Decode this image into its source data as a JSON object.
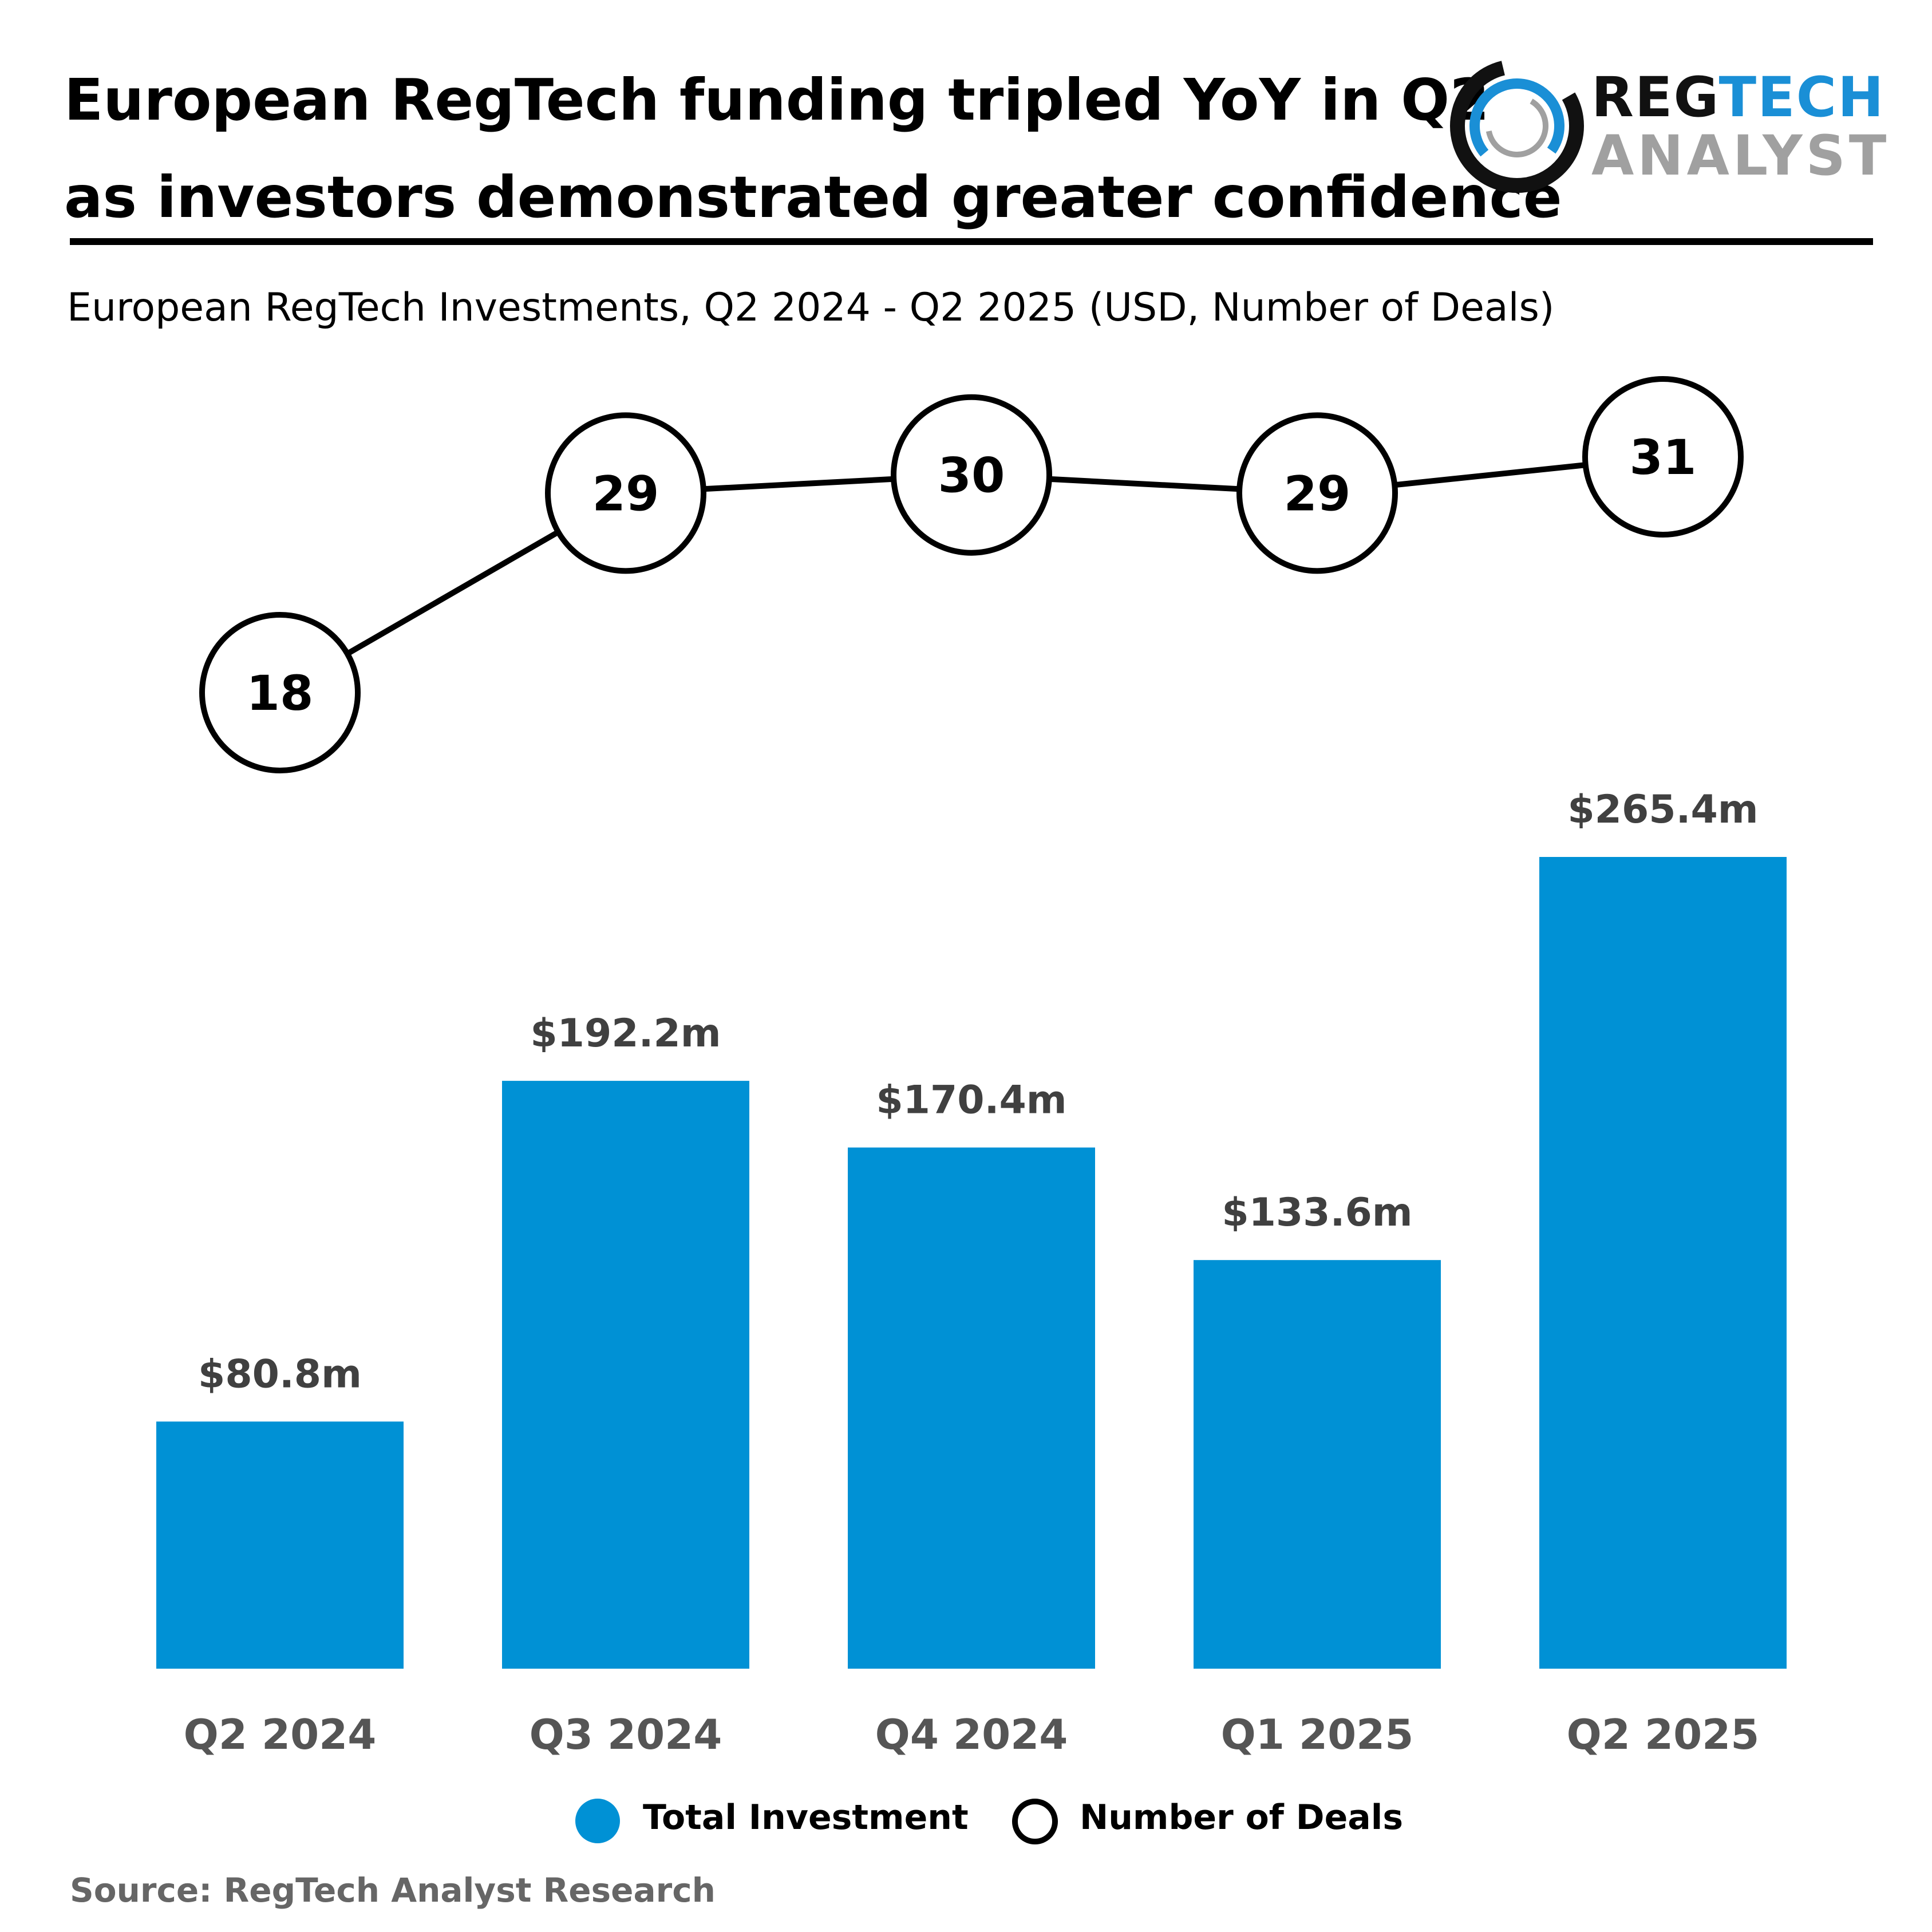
{
  "header": {
    "title_line1": "European RegTech funding tripled YoY in Q2",
    "title_line2": "as investors demonstrated greater confidence",
    "logo_top_part1": "REG",
    "logo_top_part2": "TECH",
    "logo_bottom": "ANALYST"
  },
  "subtitle": "European RegTech Investments, Q2 2024 - Q2 2025 (USD, Number of Deals)",
  "chart_data": {
    "type": "bar",
    "title": "European RegTech Investments, Q2 2024 - Q2 2025 (USD, Number of Deals)",
    "categories": [
      "Q2 2024",
      "Q3 2024",
      "Q4 2024",
      "Q1 2025",
      "Q2 2025"
    ],
    "series": [
      {
        "name": "Total Investment",
        "type": "bar",
        "unit": "USD millions",
        "values": [
          80.8,
          192.2,
          170.4,
          133.6,
          265.4
        ],
        "labels": [
          "$80.8m",
          "$192.2m",
          "$170.4m",
          "$133.6m",
          "$265.4m"
        ]
      },
      {
        "name": "Number of Deals",
        "type": "line",
        "values": [
          18,
          29,
          30,
          29,
          31
        ]
      }
    ],
    "xlabel": "",
    "ylabel": "",
    "ylim": [
      0,
      265.4
    ],
    "deals_ylim": [
      18,
      31
    ],
    "grid": false,
    "legend_position": "bottom"
  },
  "legend": {
    "investment_label": "Total Investment",
    "deals_label": "Number of Deals"
  },
  "source": "Source: RegTech Analyst Research",
  "colors": {
    "bar": "#0091d5",
    "line": "#000000",
    "value_label": "#404040",
    "axis_label": "#555555",
    "logo_blue": "#1a8fd6",
    "logo_gray": "#a0a0a0"
  }
}
